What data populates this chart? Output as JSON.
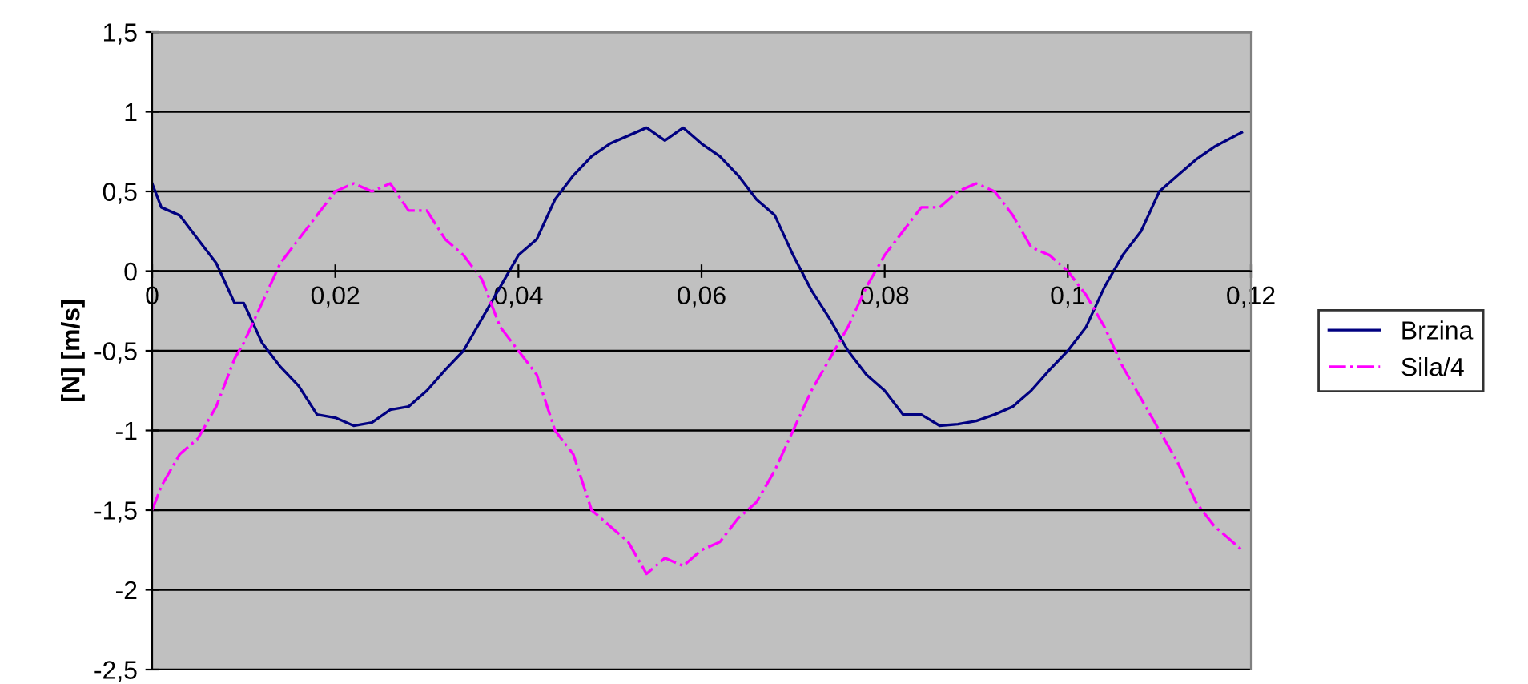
{
  "chart_data": {
    "type": "line",
    "ylabel": "[N] [m/s]",
    "xlim": [
      0,
      0.12
    ],
    "xticks": [
      {
        "value": 0,
        "label": "0"
      },
      {
        "value": 0.02,
        "label": "0,02"
      },
      {
        "value": 0.04,
        "label": "0,04"
      },
      {
        "value": 0.06,
        "label": "0,06"
      },
      {
        "value": 0.08,
        "label": "0,08"
      },
      {
        "value": 0.1,
        "label": "0,1"
      },
      {
        "value": 0.12,
        "label": "0,12"
      }
    ],
    "ylim": [
      -2.5,
      1.5
    ],
    "yticks": [
      {
        "value": -2.5,
        "label": "-2,5"
      },
      -2,
      {
        "value": -1.5,
        "label": "-1,5"
      },
      -1,
      {
        "value": -0.5,
        "label": "-0,5"
      },
      0,
      {
        "value": 0.5,
        "label": "0,5"
      },
      1,
      {
        "value": 1.5,
        "label": "1,5"
      }
    ],
    "grid": "y",
    "legend": "right",
    "marker": "none",
    "x": [
      0,
      0.001,
      0.003,
      0.005,
      0.007,
      0.009,
      0.01,
      0.012,
      0.014,
      0.016,
      0.018,
      0.02,
      0.022,
      0.024,
      0.026,
      0.028,
      0.03,
      0.032,
      0.034,
      0.036,
      0.038,
      0.04,
      0.042,
      0.044,
      0.046,
      0.048,
      0.05,
      0.052,
      0.054,
      0.056,
      0.058,
      0.06,
      0.062,
      0.064,
      0.066,
      0.068,
      0.07,
      0.072,
      0.074,
      0.076,
      0.078,
      0.08,
      0.082,
      0.084,
      0.086,
      0.088,
      0.09,
      0.092,
      0.094,
      0.096,
      0.098,
      0.1,
      0.102,
      0.104,
      0.106,
      0.108,
      0.11,
      0.112,
      0.114,
      0.116,
      0.119
    ],
    "series": [
      {
        "name": "Brzina",
        "color": "#000080",
        "line_style": "solid",
        "values": [
          0.55,
          0.4,
          0.35,
          0.2,
          0.05,
          -0.2,
          -0.2,
          -0.45,
          -0.6,
          -0.72,
          -0.9,
          -0.92,
          -0.97,
          -0.95,
          -0.87,
          -0.85,
          -0.75,
          -0.62,
          -0.5,
          -0.3,
          -0.1,
          0.1,
          0.2,
          0.45,
          0.6,
          0.72,
          0.8,
          0.85,
          0.9,
          0.82,
          0.9,
          0.8,
          0.72,
          0.6,
          0.45,
          0.35,
          0.1,
          -0.12,
          -0.3,
          -0.5,
          -0.65,
          -0.75,
          -0.9,
          -0.9,
          -0.97,
          -0.96,
          -0.94,
          -0.9,
          -0.85,
          -0.75,
          -0.62,
          -0.5,
          -0.35,
          -0.1,
          0.1,
          0.25,
          0.5,
          0.6,
          0.7,
          0.78,
          0.87
        ]
      },
      {
        "name": "Sila/4",
        "color": "#ff00ff",
        "line_style": "dashdot",
        "values": [
          -1.5,
          -1.35,
          -1.15,
          -1.05,
          -0.85,
          -0.55,
          -0.45,
          -0.2,
          0.05,
          0.2,
          0.35,
          0.5,
          0.55,
          0.5,
          0.55,
          0.38,
          0.38,
          0.2,
          0.1,
          -0.05,
          -0.35,
          -0.5,
          -0.65,
          -1.0,
          -1.15,
          -1.5,
          -1.6,
          -1.7,
          -1.9,
          -1.8,
          -1.85,
          -1.75,
          -1.7,
          -1.55,
          -1.45,
          -1.25,
          -1.0,
          -0.75,
          -0.55,
          -0.35,
          -0.1,
          0.1,
          0.25,
          0.4,
          0.4,
          0.5,
          0.55,
          0.5,
          0.35,
          0.15,
          0.1,
          0.0,
          -0.15,
          -0.35,
          -0.6,
          -0.8,
          -1.0,
          -1.2,
          -1.45,
          -1.6,
          -1.75
        ]
      }
    ]
  }
}
